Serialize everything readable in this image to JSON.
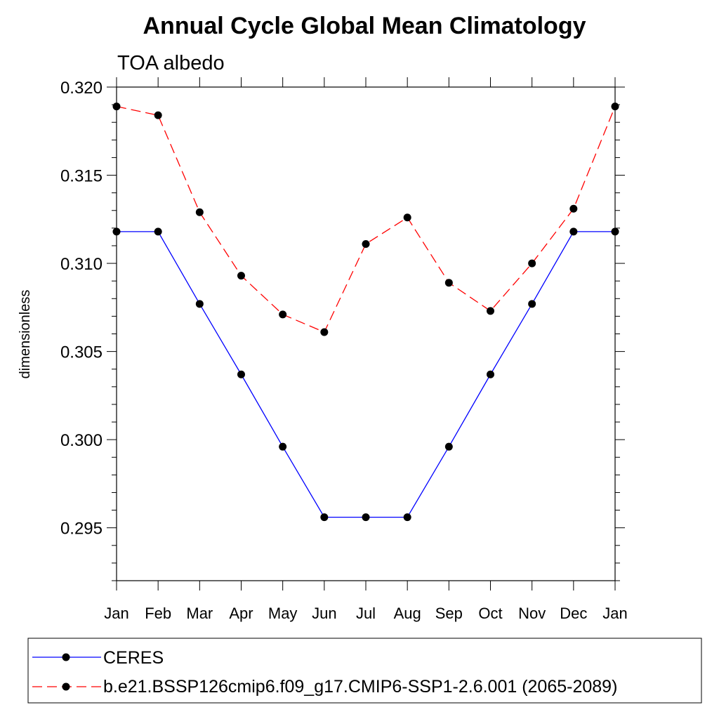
{
  "chart_data": {
    "type": "line",
    "title": "Annual Cycle Global Mean Climatology",
    "subtitle": "TOA albedo",
    "xlabel": "",
    "ylabel": "dimensionless",
    "categories": [
      "Jan",
      "Feb",
      "Mar",
      "Apr",
      "May",
      "Jun",
      "Jul",
      "Aug",
      "Sep",
      "Oct",
      "Nov",
      "Dec",
      "Jan"
    ],
    "ylim": [
      0.292,
      0.32
    ],
    "yticks": [
      "0.320",
      "0.315",
      "0.310",
      "0.305",
      "0.300",
      "0.295"
    ],
    "ytick_values": [
      0.32,
      0.315,
      0.31,
      0.305,
      0.3,
      0.295
    ],
    "grid": false,
    "legend_position": "bottom",
    "series": [
      {
        "name": "CERES",
        "color": "#0000ff",
        "style": "solid",
        "marker": "circle",
        "values": [
          0.3118,
          0.3118,
          0.3077,
          0.3037,
          0.2996,
          0.2956,
          0.2956,
          0.2956,
          0.2996,
          0.3037,
          0.3077,
          0.3118,
          0.3118
        ]
      },
      {
        "name": "b.e21.BSSP126cmip6.f09_g17.CMIP6-SSP1-2.6.001 (2065-2089)",
        "color": "#ff0000",
        "style": "dashed",
        "marker": "circle",
        "values": [
          0.3189,
          0.3184,
          0.3129,
          0.3093,
          0.3071,
          0.3061,
          0.3111,
          0.3126,
          0.3089,
          0.3073,
          0.31,
          0.3131,
          0.3189
        ]
      }
    ]
  }
}
